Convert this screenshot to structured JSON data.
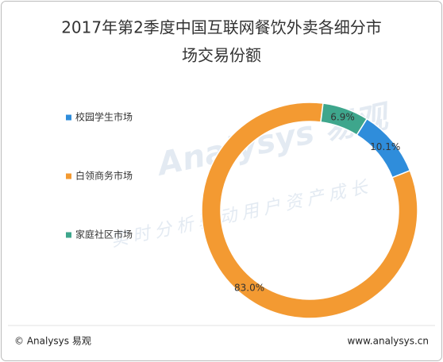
{
  "chart_data": {
    "type": "pie",
    "title": [
      "2017年第2季度中国互联网餐饮外卖各细分市",
      "场交易份额"
    ],
    "categories": [
      "校园学生市场",
      "白领商务市场",
      "家庭社区市场"
    ],
    "values": [
      10.1,
      83.0,
      6.9
    ],
    "value_labels": [
      "10.1%",
      "83.0%",
      "6.9%"
    ],
    "colors": [
      "#2f8ddb",
      "#f39a32",
      "#3ea68c"
    ],
    "watermark": [
      "Analysys 易观",
      "实时分析驱动用户资产成长"
    ],
    "footer": {
      "left": "© Analysys 易观",
      "right": "www.analysys.cn"
    }
  }
}
